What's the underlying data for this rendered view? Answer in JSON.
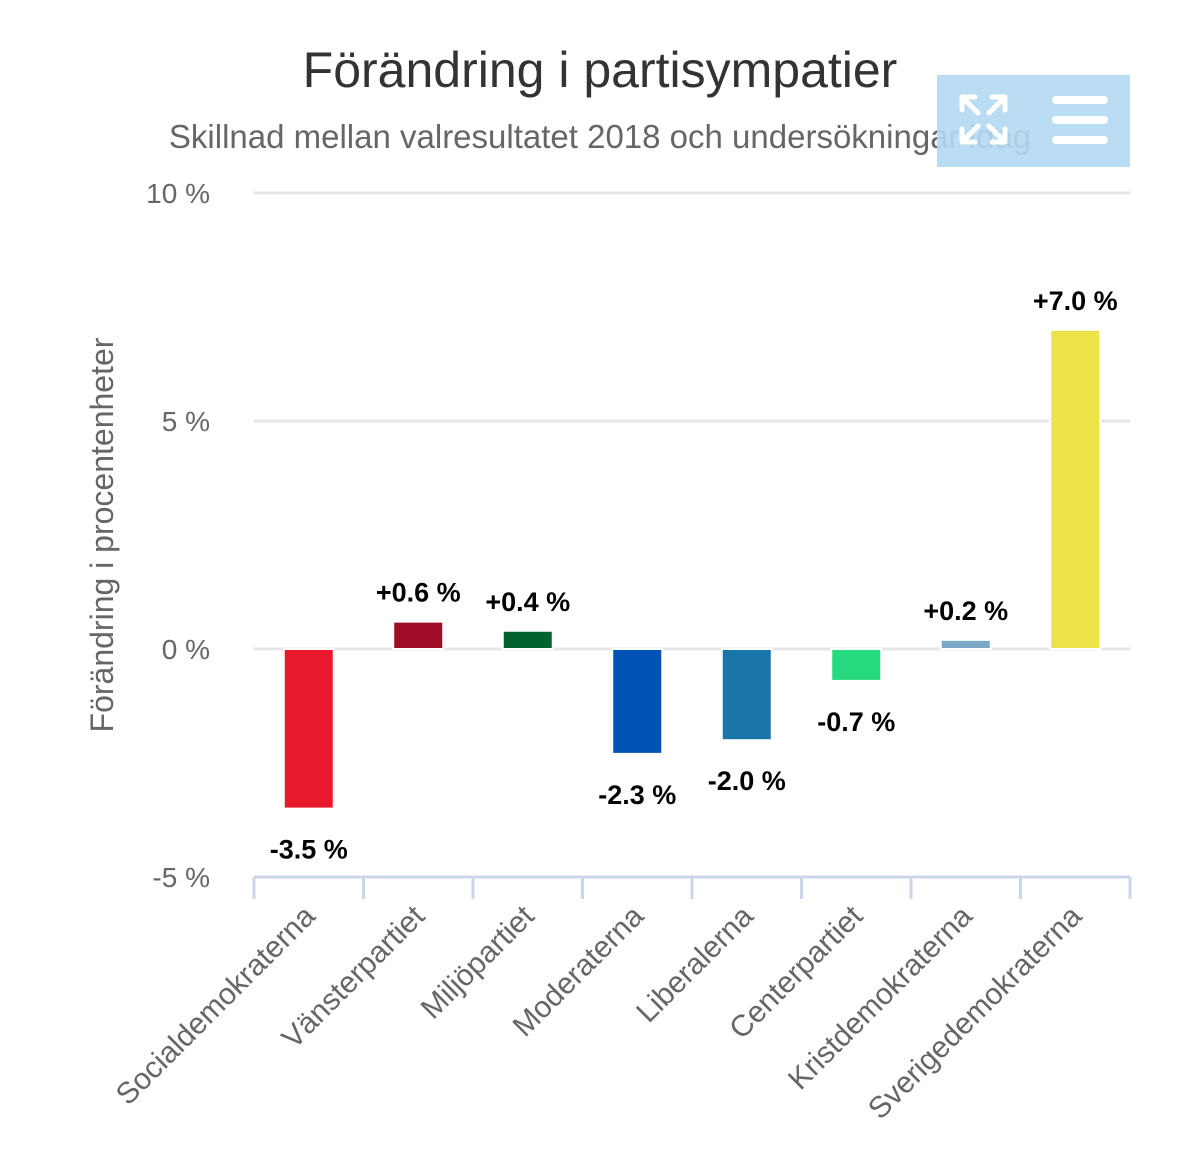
{
  "chart_data": {
    "type": "bar",
    "title": "Förändring i partisympatier",
    "subtitle": "Skillnad mellan valresultatet 2018 och undersökningar idag",
    "ylabel": "Förändring i procentenheter",
    "xlabel": "",
    "ylim": [
      -5,
      10
    ],
    "yticks": [
      {
        "value": 10,
        "label": "10 %"
      },
      {
        "value": 5,
        "label": "5 %"
      },
      {
        "value": 0,
        "label": "0 %"
      },
      {
        "value": -5,
        "label": "-5 %"
      }
    ],
    "grid": true,
    "categories": [
      "Socialdemokraterna",
      "Vänsterpartiet",
      "Miljöpartiet",
      "Moderaterna",
      "Liberalerna",
      "Centerpartiet",
      "Kristdemokraterna",
      "Sverigedemokraterna"
    ],
    "values": [
      -3.5,
      0.6,
      0.4,
      -2.3,
      -2.0,
      -0.7,
      0.2,
      7.0
    ],
    "data_labels": [
      "-3.5 %",
      "+0.6 %",
      "+0.4 %",
      "-2.3 %",
      "-2.0 %",
      "-0.7 %",
      "+0.2 %",
      "+7.0 %"
    ],
    "colors": [
      "#e8192c",
      "#a00c25",
      "#00632e",
      "#0052b4",
      "#1a75a8",
      "#26d97f",
      "#7ba8c9",
      "#ece34a"
    ]
  },
  "toolbar": {
    "background": "#b3d9f2",
    "icons": [
      "fullscreen-icon",
      "menu-icon"
    ]
  }
}
